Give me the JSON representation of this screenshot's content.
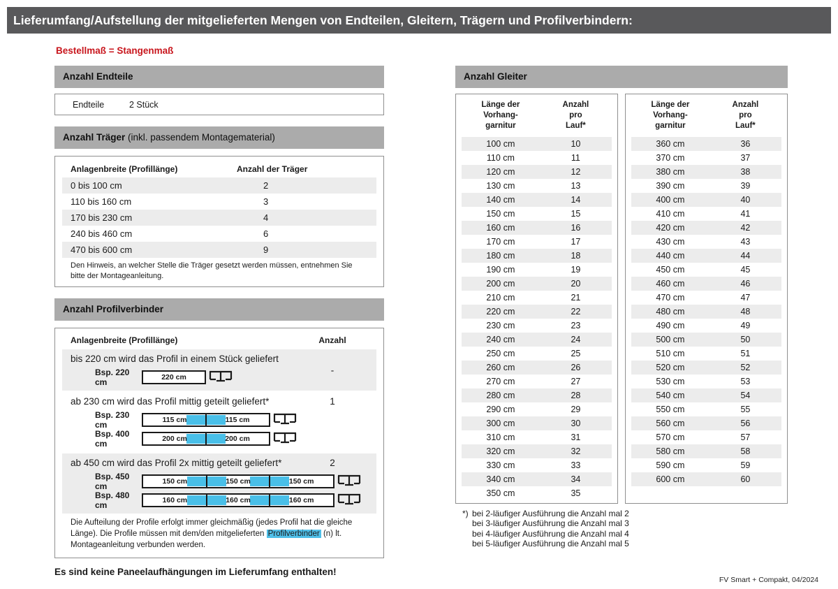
{
  "page": {
    "title": "Lieferumfang/Aufstellung der mitgelieferten Mengen von Endteilen, Gleitern, Trägern und Profilverbindern:",
    "subtitle": "Bestellmaß = Stangenmaß",
    "bottom_note": "Es sind keine Paneelaufhängungen im Lieferumfang enthalten!",
    "footer": "FV Smart + Compakt, 04/2024"
  },
  "colors": {
    "titlebar_gray": "#59595b",
    "section_header_gray": "#ababab",
    "row_stripe_gray": "#ececec",
    "connector_blue": "#49bfe8",
    "highlight_blue": "#4fbfe8",
    "accent_red": "#c8161d"
  },
  "endteile": {
    "header": "Anzahl Endteile",
    "label": "Endteile",
    "value": "2 Stück"
  },
  "traeger": {
    "header_bold": "Anzahl Träger",
    "header_rest": " (inkl. passendem Montagematerial)",
    "col1": "Anlagenbreite (Profillänge)",
    "col2": "Anzahl der Träger",
    "rows": [
      {
        "range": "0 bis 100 cm",
        "count": "2"
      },
      {
        "range": "110 bis 160 cm",
        "count": "3"
      },
      {
        "range": "170 bis 230 cm",
        "count": "4"
      },
      {
        "range": "240 bis 460 cm",
        "count": "6"
      },
      {
        "range": "470 bis 600 cm",
        "count": "9"
      }
    ],
    "note": "Den Hinweis, an welcher Stelle die Träger gesetzt werden müssen, entnehmen Sie bitte der Montageanleitung."
  },
  "profilverbinder": {
    "header": "Anzahl Profilverbinder",
    "col1": "Anlagenbreite (Profillänge)",
    "col2": "Anzahl",
    "groups": [
      {
        "text": "bis 220 cm wird das Profil in einem Stück geliefert",
        "count": "-",
        "examples": [
          {
            "label": "Bsp. 220 cm",
            "segments": [
              "220 cm"
            ]
          }
        ]
      },
      {
        "text": "ab 230 cm wird das Profil mittig geteilt geliefert*",
        "count": "1",
        "examples": [
          {
            "label": "Bsp. 230 cm",
            "segments": [
              "115 cm",
              "115 cm"
            ]
          },
          {
            "label": "Bsp. 400 cm",
            "segments": [
              "200 cm",
              "200 cm"
            ]
          }
        ]
      },
      {
        "text": "ab 450 cm wird das Profil 2x mittig geteilt geliefert*",
        "count": "2",
        "examples": [
          {
            "label": "Bsp. 450 cm",
            "segments": [
              "150 cm",
              "150 cm",
              "150 cm"
            ]
          },
          {
            "label": "Bsp. 480 cm",
            "segments": [
              "160 cm",
              "160 cm",
              "160 cm"
            ]
          }
        ]
      }
    ],
    "note_before": "Die Aufteilung der Profile erfolgt immer gleichmäßig (jedes Profil hat die gleiche Länge). Die Profile müssen mit dem/den mitgelieferten ",
    "note_highlight": "Profilverbinder",
    "note_after": " (n) lt. Montageanleitung verbunden werden."
  },
  "gleiter": {
    "header": "Anzahl Gleiter",
    "col1_lines": [
      "Länge der",
      "Vorhang-",
      "garnitur"
    ],
    "col2_lines": [
      "Anzahl",
      "pro",
      "Lauf*"
    ],
    "table1": [
      [
        "100 cm",
        "10"
      ],
      [
        "110 cm",
        "11"
      ],
      [
        "120 cm",
        "12"
      ],
      [
        "130 cm",
        "13"
      ],
      [
        "140 cm",
        "14"
      ],
      [
        "150 cm",
        "15"
      ],
      [
        "160 cm",
        "16"
      ],
      [
        "170 cm",
        "17"
      ],
      [
        "180 cm",
        "18"
      ],
      [
        "190 cm",
        "19"
      ],
      [
        "200 cm",
        "20"
      ],
      [
        "210 cm",
        "21"
      ],
      [
        "220 cm",
        "22"
      ],
      [
        "230 cm",
        "23"
      ],
      [
        "240 cm",
        "24"
      ],
      [
        "250 cm",
        "25"
      ],
      [
        "260 cm",
        "26"
      ],
      [
        "270 cm",
        "27"
      ],
      [
        "280 cm",
        "28"
      ],
      [
        "290 cm",
        "29"
      ],
      [
        "300 cm",
        "30"
      ],
      [
        "310 cm",
        "31"
      ],
      [
        "320 cm",
        "32"
      ],
      [
        "330 cm",
        "33"
      ],
      [
        "340 cm",
        "34"
      ],
      [
        "350 cm",
        "35"
      ]
    ],
    "table2": [
      [
        "360 cm",
        "36"
      ],
      [
        "370 cm",
        "37"
      ],
      [
        "380 cm",
        "38"
      ],
      [
        "390 cm",
        "39"
      ],
      [
        "400 cm",
        "40"
      ],
      [
        "410 cm",
        "41"
      ],
      [
        "420 cm",
        "42"
      ],
      [
        "430 cm",
        "43"
      ],
      [
        "440 cm",
        "44"
      ],
      [
        "450 cm",
        "45"
      ],
      [
        "460 cm",
        "46"
      ],
      [
        "470 cm",
        "47"
      ],
      [
        "480 cm",
        "48"
      ],
      [
        "490 cm",
        "49"
      ],
      [
        "500 cm",
        "50"
      ],
      [
        "510 cm",
        "51"
      ],
      [
        "520 cm",
        "52"
      ],
      [
        "530 cm",
        "53"
      ],
      [
        "540 cm",
        "54"
      ],
      [
        "550 cm",
        "55"
      ],
      [
        "560 cm",
        "56"
      ],
      [
        "570 cm",
        "57"
      ],
      [
        "580 cm",
        "58"
      ],
      [
        "590 cm",
        "59"
      ],
      [
        "600 cm",
        "60"
      ]
    ],
    "footnote_marker": "*)",
    "footnotes": [
      "bei 2-läufiger Ausführung die Anzahl mal 2",
      "bei 3-läufiger Ausführung die Anzahl mal 3",
      "bei 4-läufiger Ausführung die Anzahl mal 4",
      "bei 5-läufiger Ausführung die Anzahl mal 5"
    ]
  }
}
